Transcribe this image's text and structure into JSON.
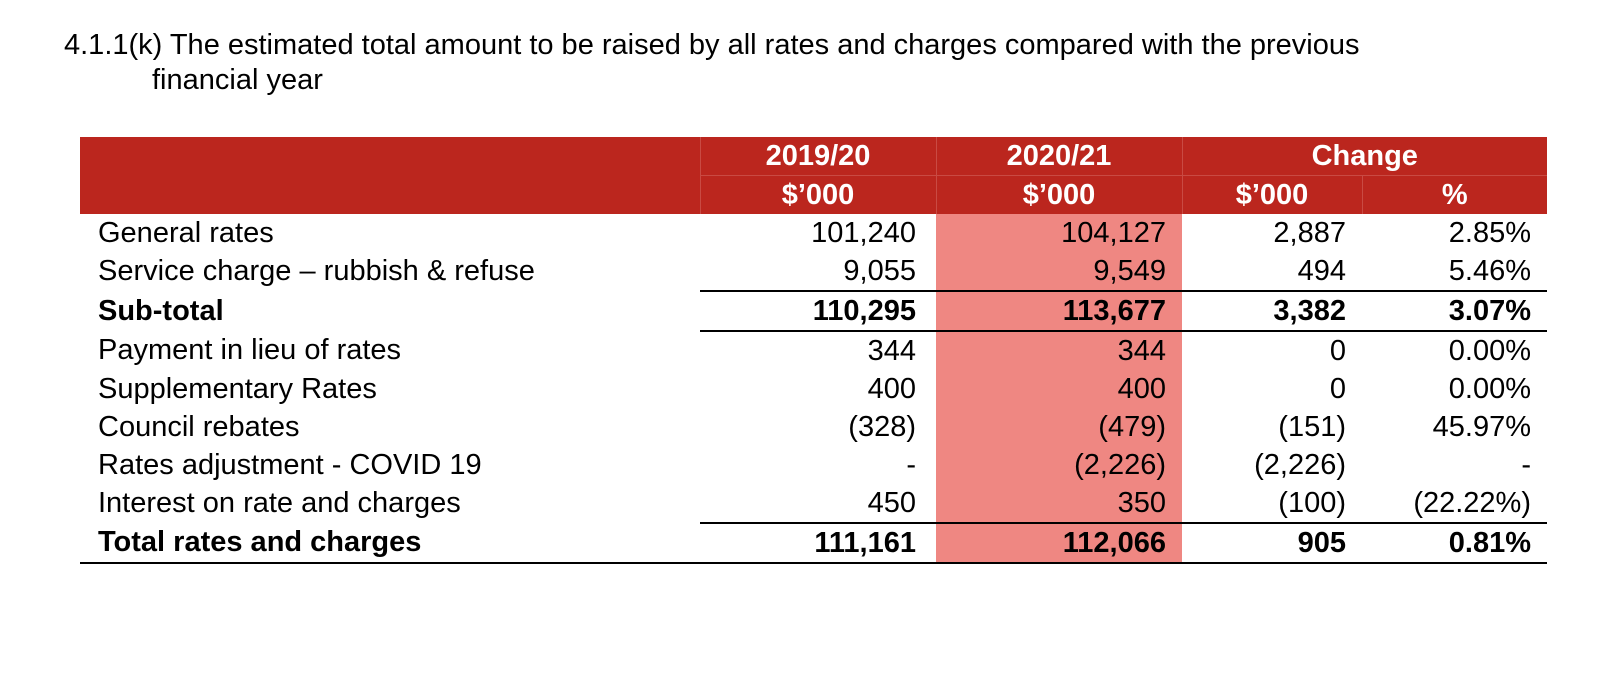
{
  "heading": {
    "line1": "4.1.1(k) The estimated total amount to be raised by all rates and charges compared with the previous",
    "line2": "financial year"
  },
  "colors": {
    "header_bg": "#bb261e",
    "highlight_col": "#ef8782"
  },
  "table": {
    "header": {
      "y1_year": "2019/20",
      "y2_year": "2020/21",
      "change": "Change",
      "y1_unit": "$’000",
      "y2_unit": "$’000",
      "change_unit": "$’000",
      "change_pct": "%"
    },
    "rows": [
      {
        "label": "General rates",
        "y1": "101,240",
        "y2": "104,127",
        "chd": "2,887",
        "chp": "2.85%"
      },
      {
        "label": "Service charge – rubbish & refuse",
        "y1": "9,055",
        "y2": "9,549",
        "chd": "494",
        "chp": "5.46%"
      },
      {
        "label": "Sub-total",
        "y1": "110,295",
        "y2": "113,677",
        "chd": "3,382",
        "chp": "3.07%"
      },
      {
        "label": "Payment in lieu of rates",
        "y1": "344",
        "y2": "344",
        "chd": "0",
        "chp": "0.00%"
      },
      {
        "label": "Supplementary Rates",
        "y1": "400",
        "y2": "400",
        "chd": "0",
        "chp": "0.00%"
      },
      {
        "label": "Council rebates",
        "y1": "(328)",
        "y2": "(479)",
        "chd": "(151)",
        "chp": "45.97%"
      },
      {
        "label": "Rates adjustment - COVID 19",
        "y1": "-",
        "y2": "(2,226)",
        "chd": "(2,226)",
        "chp": "-"
      },
      {
        "label": "Interest on rate and charges",
        "y1": "450",
        "y2": "350",
        "chd": "(100)",
        "chp": "(22.22%)"
      },
      {
        "label": "Total rates and charges",
        "y1": "111,161",
        "y2": "112,066",
        "chd": "905",
        "chp": "0.81%"
      }
    ]
  }
}
